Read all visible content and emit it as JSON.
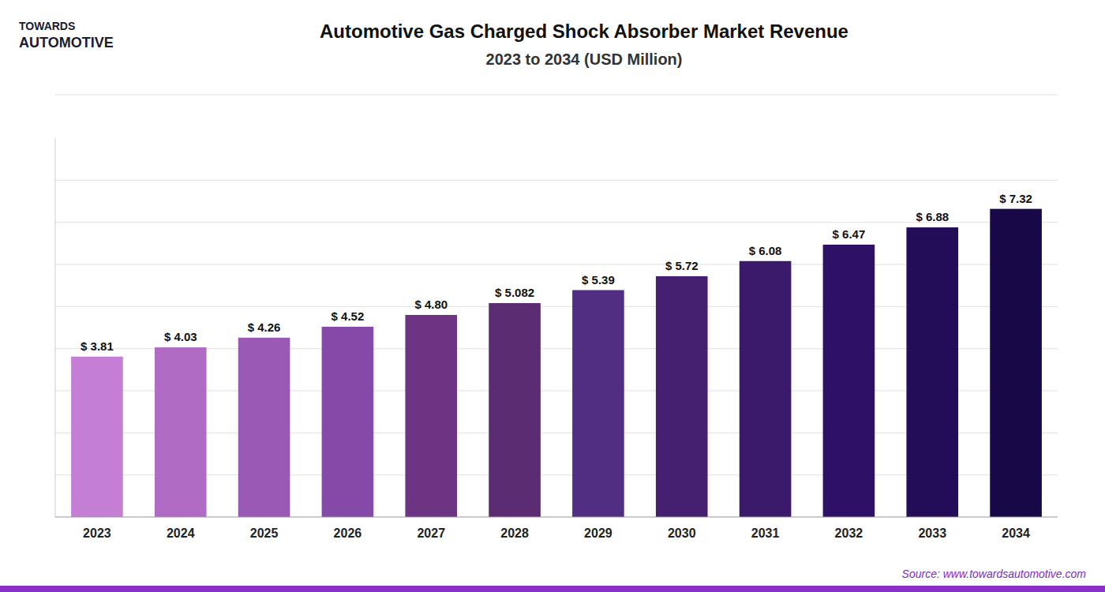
{
  "chart_data": {
    "type": "bar",
    "title": "Automotive Gas Charged Shock Absorber Market Revenue",
    "subtitle": "2023 to 2034 (USD Million)",
    "categories": [
      "2023",
      "2024",
      "2025",
      "2026",
      "2027",
      "2028",
      "2029",
      "2030",
      "2031",
      "2032",
      "2033",
      "2034"
    ],
    "values": [
      3.81,
      4.03,
      4.26,
      4.52,
      4.8,
      5.082,
      5.39,
      5.72,
      6.08,
      6.47,
      6.88,
      7.32
    ],
    "value_labels": [
      "$ 3.81",
      "$ 4.03",
      "$ 4.26",
      "$ 4.52",
      "$ 4.80",
      "$ 5.082",
      "$ 5.39",
      "$ 5.72",
      "$ 6.08",
      "$ 6.47",
      "$ 6.88",
      "$ 7.32"
    ],
    "colors": [
      "#c47fd4",
      "#b06bc4",
      "#9b59b6",
      "#8549a8",
      "#6c3483",
      "#5b2c72",
      "#512e81",
      "#452070",
      "#3b1a6b",
      "#2e1066",
      "#240d58",
      "#180848"
    ],
    "ylim": [
      0,
      9
    ],
    "yticks": [
      1,
      2,
      3,
      4,
      5,
      6,
      7,
      8
    ],
    "grid": true,
    "data_labels": true,
    "tick_labels": "x",
    "annotations": [
      "TOWARDS",
      "AUTOMOTIVE",
      "Source: www.towardsautomotive.com"
    ]
  }
}
